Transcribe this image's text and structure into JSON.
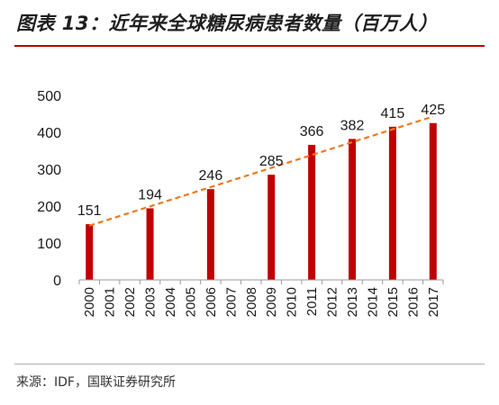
{
  "header": {
    "title": "图表 13：近年来全球糖尿病患者数量（百万人）"
  },
  "footer": {
    "source": "来源：IDF，国联证券研究所"
  },
  "colors": {
    "bar": "#c00000",
    "trendline": "#f07820",
    "title_rule": "#b40000",
    "axis": "#9a9a9a"
  },
  "chart_data": {
    "type": "bar",
    "categories": [
      "2000",
      "2001",
      "2002",
      "2003",
      "2004",
      "2005",
      "2006",
      "2007",
      "2008",
      "2009",
      "2010",
      "2011",
      "2012",
      "2013",
      "2014",
      "2015",
      "2016",
      "2017"
    ],
    "values": [
      151,
      null,
      null,
      194,
      null,
      null,
      246,
      null,
      null,
      285,
      null,
      366,
      null,
      382,
      null,
      415,
      null,
      425
    ],
    "data_labels": [
      "151",
      "",
      "",
      "194",
      "",
      "",
      "246",
      "",
      "",
      "285",
      "",
      "366",
      "",
      "382",
      "",
      "415",
      "",
      "425"
    ],
    "title": "",
    "xlabel": "",
    "ylabel": "",
    "ylim": [
      0,
      500
    ],
    "yticks": [
      0,
      100,
      200,
      300,
      400,
      500
    ],
    "grid": false,
    "trendline": {
      "type": "linear",
      "style": "dashed"
    }
  }
}
